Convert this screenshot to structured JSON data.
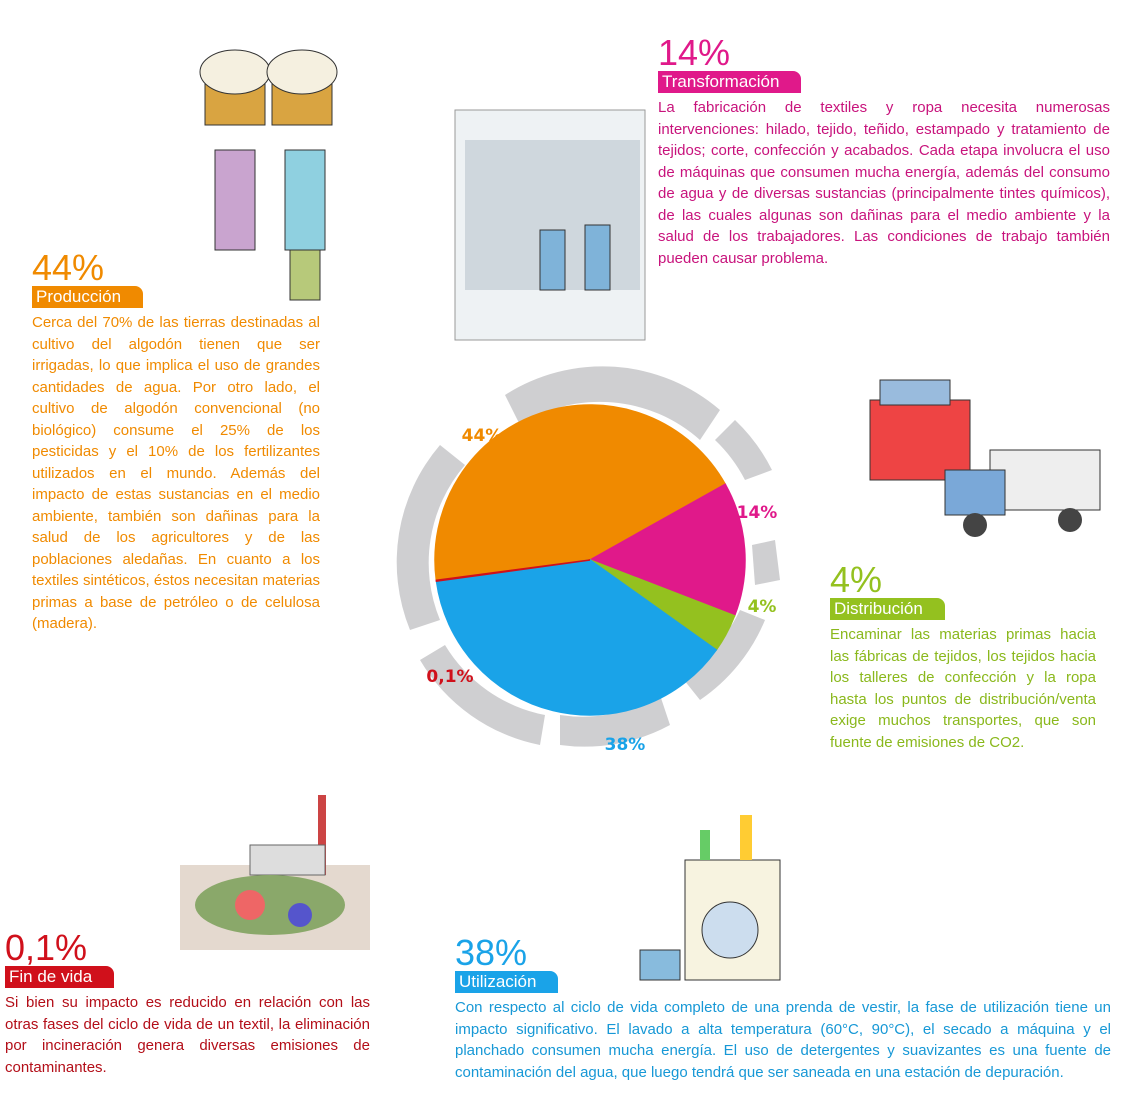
{
  "chart_data": {
    "type": "pie",
    "categories": [
      "Producción",
      "Transformación",
      "Distribución",
      "Utilización",
      "Fin de vida"
    ],
    "values": [
      44,
      14,
      4,
      38,
      0.1
    ],
    "value_labels": [
      "44%",
      "14%",
      "4%",
      "38%",
      "0,1%"
    ],
    "colors": [
      "#f08a00",
      "#e0198a",
      "#94c11f",
      "#1aa3e8",
      "#d0101b"
    ]
  },
  "panels": [
    {
      "text": "Cerca del 70% de las tierras destinadas al cultivo del algodón tienen que ser irrigadas, lo que implica el uso de grandes cantidades de agua. Por otro lado, el cultivo de algodón convencional (no biológico) consume el 25% de los pesticidas y el 10% de los fertilizantes utilizados en el mundo. Además del impacto de estas sustancias en el medio ambiente, también son dañinas para la salud de los agricultores y de las poblaciones aledañas. En cuanto a los textiles sintéticos, éstos necesitan materias primas a base de petróleo o de celulosa (madera)."
    },
    {
      "text": "La fabricación de textiles y ropa necesita numerosas intervenciones: hilado, tejido, teñido, estampado y tratamiento de tejidos; corte, confección y acabados. Cada etapa involucra el uso de máquinas que consumen mucha energía, además del consumo de agua y de diversas sustancias (principalmente tintes químicos), de las cuales algunas son dañinas para el medio ambiente y la salud de los trabajadores. Las condiciones de trabajo también pueden causar problema."
    },
    {
      "text": "Encaminar las materias primas hacia las fábricas de tejidos, los tejidos hacia los talleres de confección y la ropa hasta los puntos de distribución/venta exige muchos transportes, que son fuente de emisiones de CO2."
    },
    {
      "text": "Con respecto al ciclo de vida completo de una prenda de vestir, la fase de utilización tiene un impacto significativo. El lavado a alta temperatura (60°C, 90°C), el secado a máquina y el planchado consumen mucha energía. El uso de detergentes y suavizantes es una fuente de contaminación del agua, que luego tendrá que ser saneada en una estación de depuración."
    },
    {
      "text": "Si bien su impacto es reducido en relación con las otras fases del ciclo de vida de un textil, la eliminación por incineración genera diversas emisiones de contaminantes."
    }
  ]
}
